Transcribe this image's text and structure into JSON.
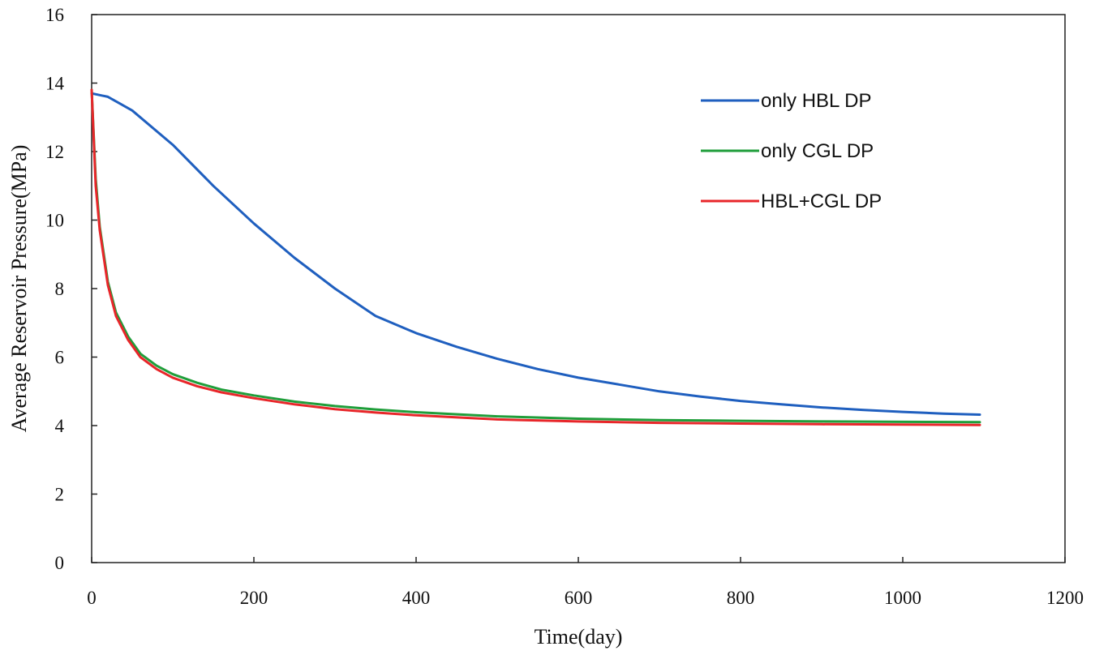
{
  "chart_data": {
    "type": "line",
    "title": "",
    "xlabel": "Time(day)",
    "ylabel": "Average Reservoir  Pressure(MPa)",
    "xlim": [
      0,
      1200
    ],
    "ylim": [
      0,
      16
    ],
    "xticks": [
      0,
      200,
      400,
      600,
      800,
      1000,
      1200
    ],
    "yticks": [
      0,
      2,
      4,
      6,
      8,
      10,
      12,
      14,
      16
    ],
    "grid": false,
    "legend_position": "top-right",
    "series": [
      {
        "name": "only HBL DP",
        "color": "#1f5fbf",
        "x": [
          0,
          20,
          50,
          100,
          150,
          200,
          250,
          300,
          350,
          400,
          450,
          500,
          550,
          600,
          650,
          700,
          750,
          800,
          850,
          900,
          950,
          1000,
          1050,
          1095
        ],
        "y": [
          13.7,
          13.6,
          13.2,
          12.2,
          11.0,
          9.9,
          8.9,
          8.0,
          7.2,
          6.7,
          6.3,
          5.95,
          5.65,
          5.4,
          5.2,
          5.0,
          4.85,
          4.72,
          4.62,
          4.53,
          4.46,
          4.4,
          4.35,
          4.32
        ]
      },
      {
        "name": "only CGL DP",
        "color": "#1f9e3a",
        "x": [
          0,
          5,
          10,
          20,
          30,
          45,
          60,
          80,
          100,
          130,
          160,
          200,
          250,
          300,
          350,
          400,
          500,
          600,
          700,
          800,
          900,
          1000,
          1095
        ],
        "y": [
          13.8,
          11.2,
          9.8,
          8.2,
          7.3,
          6.6,
          6.1,
          5.75,
          5.5,
          5.25,
          5.05,
          4.88,
          4.7,
          4.57,
          4.47,
          4.39,
          4.27,
          4.2,
          4.16,
          4.14,
          4.12,
          4.11,
          4.1
        ]
      },
      {
        "name": "HBL+CGL DP",
        "color": "#e8262a",
        "x": [
          0,
          5,
          10,
          20,
          30,
          45,
          60,
          80,
          100,
          130,
          160,
          200,
          250,
          300,
          350,
          400,
          500,
          600,
          700,
          800,
          900,
          1000,
          1095
        ],
        "y": [
          13.8,
          11.0,
          9.7,
          8.1,
          7.2,
          6.5,
          6.0,
          5.65,
          5.4,
          5.15,
          4.97,
          4.8,
          4.62,
          4.48,
          4.38,
          4.3,
          4.18,
          4.12,
          4.08,
          4.06,
          4.04,
          4.03,
          4.02
        ]
      }
    ]
  }
}
